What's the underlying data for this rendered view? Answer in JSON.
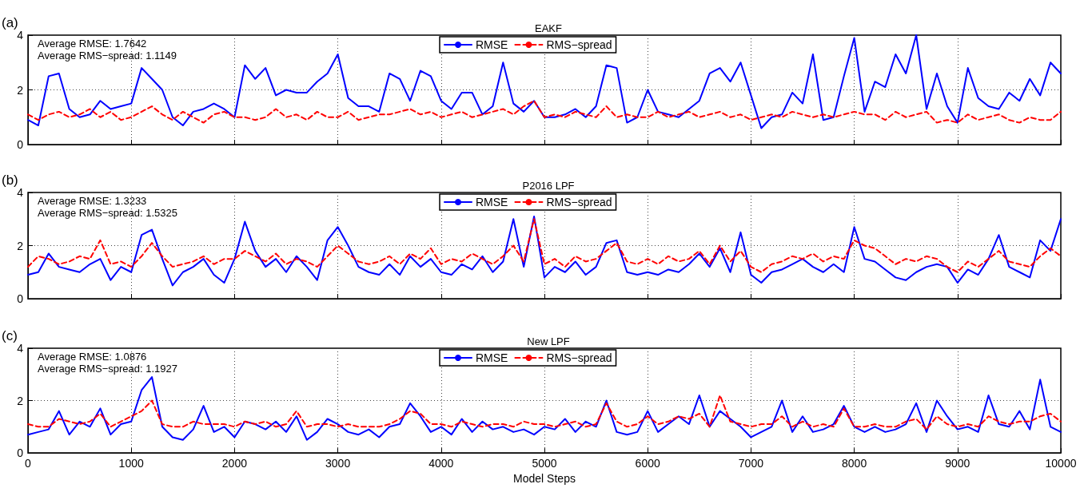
{
  "chart_data": [
    {
      "type": "line",
      "title": "EAKF",
      "annotations": [
        "(a)",
        "Average RMSE: 1.7642",
        "Average RMS−spread: 1.1149"
      ],
      "legend": "top",
      "grid": true,
      "tick_labels": "y",
      "marker": "none",
      "xlim": [
        0,
        10000
      ],
      "xticks": [
        0,
        1000,
        2000,
        3000,
        4000,
        5000,
        6000,
        7000,
        8000,
        9000,
        10000
      ],
      "ylim": [
        0,
        4
      ],
      "yticks": [
        0,
        2,
        4
      ],
      "x": [
        0,
        100,
        200,
        300,
        400,
        500,
        600,
        700,
        800,
        900,
        1000,
        1100,
        1200,
        1300,
        1400,
        1500,
        1600,
        1700,
        1800,
        1900,
        2000,
        2100,
        2200,
        2300,
        2400,
        2500,
        2600,
        2700,
        2800,
        2900,
        3000,
        3100,
        3200,
        3300,
        3400,
        3500,
        3600,
        3700,
        3800,
        3900,
        4000,
        4100,
        4200,
        4300,
        4400,
        4500,
        4600,
        4700,
        4800,
        4900,
        5000,
        5100,
        5200,
        5300,
        5400,
        5500,
        5600,
        5700,
        5800,
        5900,
        6000,
        6100,
        6200,
        6300,
        6400,
        6500,
        6600,
        6700,
        6800,
        6900,
        7000,
        7100,
        7200,
        7300,
        7400,
        7500,
        7600,
        7700,
        7800,
        7900,
        8000,
        8100,
        8200,
        8300,
        8400,
        8500,
        8600,
        8700,
        8800,
        8900,
        9000,
        9100,
        9200,
        9300,
        9400,
        9500,
        9600,
        9700,
        9800,
        9900,
        10000
      ],
      "series": [
        {
          "name": "RMSE",
          "color": "#0000ff",
          "line_style": "solid",
          "values": [
            0.9,
            0.7,
            2.5,
            2.6,
            1.3,
            1.0,
            1.1,
            1.6,
            1.3,
            1.4,
            1.5,
            2.8,
            2.4,
            2.0,
            1.0,
            0.7,
            1.2,
            1.3,
            1.5,
            1.3,
            1.0,
            2.9,
            2.4,
            2.8,
            1.8,
            2.0,
            1.9,
            1.9,
            2.3,
            2.6,
            3.3,
            1.7,
            1.4,
            1.4,
            1.2,
            2.6,
            2.4,
            1.6,
            2.7,
            2.5,
            1.6,
            1.3,
            1.9,
            1.9,
            1.1,
            1.4,
            3.0,
            1.5,
            1.2,
            1.6,
            1.0,
            1.0,
            1.1,
            1.3,
            1.0,
            1.4,
            2.9,
            2.8,
            0.8,
            1.0,
            2.0,
            1.2,
            1.1,
            1.0,
            1.3,
            1.6,
            2.6,
            2.8,
            2.3,
            3.0,
            1.8,
            0.6,
            1.0,
            1.1,
            1.9,
            1.5,
            3.3,
            0.9,
            1.0,
            2.5,
            3.9,
            1.2,
            2.3,
            2.1,
            3.3,
            2.6,
            4.0,
            1.3,
            2.6,
            1.4,
            0.8,
            2.8,
            1.7,
            1.4,
            1.3,
            1.9,
            1.6,
            2.4,
            1.8,
            3.0,
            2.6
          ]
        },
        {
          "name": "RMS−spread",
          "color": "#ff0000",
          "line_style": "dashed",
          "values": [
            1.1,
            0.9,
            1.1,
            1.2,
            1.0,
            1.1,
            1.3,
            1.0,
            1.2,
            0.9,
            1.0,
            1.2,
            1.4,
            1.1,
            0.9,
            1.2,
            1.0,
            0.8,
            1.1,
            1.2,
            1.0,
            1.0,
            0.9,
            1.0,
            1.3,
            1.0,
            1.1,
            0.9,
            1.2,
            1.0,
            1.0,
            1.2,
            0.9,
            1.0,
            1.1,
            1.1,
            1.2,
            1.3,
            1.1,
            1.2,
            1.0,
            1.1,
            1.2,
            1.0,
            1.1,
            1.2,
            1.3,
            1.1,
            1.4,
            1.6,
            1.0,
            1.1,
            1.0,
            1.2,
            1.1,
            1.0,
            1.4,
            1.0,
            1.1,
            1.0,
            1.0,
            1.2,
            1.0,
            1.1,
            1.2,
            1.0,
            1.1,
            1.2,
            1.0,
            1.1,
            0.9,
            1.0,
            1.1,
            1.0,
            1.2,
            1.1,
            1.0,
            1.1,
            1.0,
            1.1,
            1.2,
            1.1,
            1.1,
            0.9,
            1.2,
            1.0,
            1.1,
            1.2,
            0.8,
            0.9,
            0.8,
            1.1,
            0.9,
            1.0,
            1.1,
            0.9,
            0.8,
            1.0,
            0.9,
            0.9,
            1.2
          ]
        }
      ]
    },
    {
      "type": "line",
      "title": "P2016 LPF",
      "annotations": [
        "(b)",
        "Average RMSE: 1.3233",
        "Average RMS−spread: 1.5325"
      ],
      "legend": "top",
      "grid": true,
      "tick_labels": "y",
      "marker": "none",
      "xlim": [
        0,
        10000
      ],
      "xticks": [
        0,
        1000,
        2000,
        3000,
        4000,
        5000,
        6000,
        7000,
        8000,
        9000,
        10000
      ],
      "ylim": [
        0,
        4
      ],
      "yticks": [
        0,
        2,
        4
      ],
      "x": [
        0,
        100,
        200,
        300,
        400,
        500,
        600,
        700,
        800,
        900,
        1000,
        1100,
        1200,
        1300,
        1400,
        1500,
        1600,
        1700,
        1800,
        1900,
        2000,
        2100,
        2200,
        2300,
        2400,
        2500,
        2600,
        2700,
        2800,
        2900,
        3000,
        3100,
        3200,
        3300,
        3400,
        3500,
        3600,
        3700,
        3800,
        3900,
        4000,
        4100,
        4200,
        4300,
        4400,
        4500,
        4600,
        4700,
        4800,
        4900,
        5000,
        5100,
        5200,
        5300,
        5400,
        5500,
        5600,
        5700,
        5800,
        5900,
        6000,
        6100,
        6200,
        6300,
        6400,
        6500,
        6600,
        6700,
        6800,
        6900,
        7000,
        7100,
        7200,
        7300,
        7400,
        7500,
        7600,
        7700,
        7800,
        7900,
        8000,
        8100,
        8200,
        8300,
        8400,
        8500,
        8600,
        8700,
        8800,
        8900,
        9000,
        9100,
        9200,
        9300,
        9400,
        9500,
        9600,
        9700,
        9800,
        9900,
        10000
      ],
      "series": [
        {
          "name": "RMSE",
          "color": "#0000ff",
          "line_style": "solid",
          "values": [
            0.9,
            1.0,
            1.7,
            1.2,
            1.1,
            1.0,
            1.3,
            1.5,
            0.7,
            1.2,
            1.0,
            2.4,
            2.6,
            1.5,
            0.5,
            1.0,
            1.2,
            1.5,
            0.9,
            0.6,
            1.5,
            2.9,
            1.8,
            1.2,
            1.5,
            1.0,
            1.6,
            1.2,
            0.7,
            2.2,
            2.7,
            2.0,
            1.2,
            1.0,
            0.9,
            1.3,
            0.9,
            1.6,
            1.2,
            1.5,
            1.0,
            0.9,
            1.3,
            1.1,
            1.6,
            1.0,
            1.4,
            3.0,
            1.2,
            3.1,
            0.8,
            1.2,
            1.0,
            1.4,
            0.9,
            1.2,
            2.1,
            2.2,
            1.0,
            0.9,
            1.0,
            0.9,
            1.1,
            1.0,
            1.3,
            1.7,
            1.2,
            1.9,
            1.0,
            2.5,
            0.9,
            0.6,
            1.0,
            1.1,
            1.3,
            1.5,
            1.2,
            1.0,
            1.3,
            1.0,
            2.7,
            1.5,
            1.4,
            1.1,
            0.8,
            0.7,
            1.0,
            1.2,
            1.3,
            1.2,
            0.6,
            1.1,
            0.9,
            1.5,
            2.4,
            1.2,
            1.0,
            0.8,
            2.2,
            1.8,
            3.0
          ]
        },
        {
          "name": "RMS−spread",
          "color": "#ff0000",
          "line_style": "dashed",
          "values": [
            1.2,
            1.6,
            1.5,
            1.3,
            1.4,
            1.6,
            1.5,
            2.2,
            1.3,
            1.4,
            1.2,
            1.6,
            2.1,
            1.6,
            1.2,
            1.3,
            1.4,
            1.6,
            1.3,
            1.5,
            1.5,
            1.8,
            1.6,
            1.4,
            1.7,
            1.3,
            1.5,
            1.4,
            1.2,
            1.6,
            2.0,
            1.7,
            1.4,
            1.3,
            1.4,
            1.6,
            1.3,
            1.7,
            1.5,
            1.9,
            1.3,
            1.5,
            1.4,
            1.7,
            1.5,
            1.3,
            1.6,
            2.0,
            1.4,
            3.0,
            1.3,
            1.5,
            1.2,
            1.6,
            1.4,
            1.5,
            1.8,
            2.1,
            1.4,
            1.3,
            1.5,
            1.3,
            1.6,
            1.4,
            1.5,
            1.8,
            1.3,
            2.0,
            1.4,
            1.8,
            1.2,
            1.0,
            1.3,
            1.4,
            1.6,
            1.5,
            1.7,
            1.4,
            1.6,
            1.5,
            2.2,
            2.0,
            1.9,
            1.6,
            1.3,
            1.5,
            1.4,
            1.6,
            1.5,
            1.2,
            1.0,
            1.4,
            1.2,
            1.5,
            1.8,
            1.4,
            1.3,
            1.2,
            1.6,
            1.9,
            1.6
          ]
        }
      ]
    },
    {
      "type": "line",
      "title": "New LPF",
      "xlabel": "Model Steps",
      "annotations": [
        "(c)",
        "Average RMSE: 1.0876",
        "Average RMS−spread: 1.1927"
      ],
      "legend": "top",
      "grid": true,
      "marker": "none",
      "xlim": [
        0,
        10000
      ],
      "xticks": [
        0,
        1000,
        2000,
        3000,
        4000,
        5000,
        6000,
        7000,
        8000,
        9000,
        10000
      ],
      "ylim": [
        0,
        4
      ],
      "yticks": [
        0,
        2,
        4
      ],
      "x": [
        0,
        100,
        200,
        300,
        400,
        500,
        600,
        700,
        800,
        900,
        1000,
        1100,
        1200,
        1300,
        1400,
        1500,
        1600,
        1700,
        1800,
        1900,
        2000,
        2100,
        2200,
        2300,
        2400,
        2500,
        2600,
        2700,
        2800,
        2900,
        3000,
        3100,
        3200,
        3300,
        3400,
        3500,
        3600,
        3700,
        3800,
        3900,
        4000,
        4100,
        4200,
        4300,
        4400,
        4500,
        4600,
        4700,
        4800,
        4900,
        5000,
        5100,
        5200,
        5300,
        5400,
        5500,
        5600,
        5700,
        5800,
        5900,
        6000,
        6100,
        6200,
        6300,
        6400,
        6500,
        6600,
        6700,
        6800,
        6900,
        7000,
        7100,
        7200,
        7300,
        7400,
        7500,
        7600,
        7700,
        7800,
        7900,
        8000,
        8100,
        8200,
        8300,
        8400,
        8500,
        8600,
        8700,
        8800,
        8900,
        9000,
        9100,
        9200,
        9300,
        9400,
        9500,
        9600,
        9700,
        9800,
        9900,
        10000
      ],
      "series": [
        {
          "name": "RMSE",
          "color": "#0000ff",
          "line_style": "solid",
          "values": [
            0.7,
            0.8,
            0.9,
            1.6,
            0.7,
            1.2,
            1.0,
            1.7,
            0.7,
            1.1,
            1.2,
            2.4,
            2.9,
            1.0,
            0.6,
            0.5,
            0.9,
            1.8,
            0.8,
            1.0,
            0.6,
            1.2,
            1.1,
            0.9,
            1.2,
            0.8,
            1.4,
            0.5,
            0.8,
            1.3,
            1.1,
            0.8,
            0.7,
            0.9,
            0.6,
            1.0,
            1.1,
            1.9,
            1.4,
            0.8,
            1.0,
            0.7,
            1.3,
            0.8,
            1.2,
            0.9,
            1.0,
            0.8,
            0.9,
            0.7,
            1.0,
            0.9,
            1.3,
            0.8,
            1.2,
            1.0,
            2.0,
            0.8,
            0.7,
            0.8,
            1.6,
            0.8,
            1.1,
            1.4,
            1.1,
            2.2,
            1.0,
            1.6,
            1.3,
            1.0,
            0.6,
            0.8,
            1.0,
            2.0,
            0.8,
            1.4,
            0.8,
            0.9,
            1.1,
            1.8,
            1.0,
            0.8,
            1.0,
            0.8,
            0.9,
            1.1,
            1.9,
            0.8,
            2.0,
            1.4,
            0.9,
            1.0,
            0.8,
            2.2,
            1.1,
            1.0,
            1.6,
            0.9,
            2.8,
            1.0,
            0.8
          ]
        },
        {
          "name": "RMS−spread",
          "color": "#ff0000",
          "line_style": "dashed",
          "values": [
            1.1,
            1.0,
            1.0,
            1.3,
            1.2,
            1.1,
            1.2,
            1.5,
            1.0,
            1.2,
            1.4,
            1.6,
            2.0,
            1.1,
            1.0,
            1.0,
            1.2,
            1.1,
            1.1,
            1.1,
            1.0,
            1.2,
            1.1,
            1.2,
            1.0,
            1.1,
            1.6,
            1.0,
            1.1,
            1.1,
            1.0,
            1.1,
            1.0,
            1.0,
            1.0,
            1.1,
            1.3,
            1.6,
            1.5,
            1.1,
            1.1,
            1.0,
            1.2,
            1.1,
            1.0,
            1.1,
            1.1,
            1.0,
            1.2,
            1.1,
            1.1,
            1.0,
            1.1,
            1.2,
            1.0,
            1.1,
            1.9,
            1.2,
            1.0,
            1.1,
            1.4,
            1.1,
            1.2,
            1.4,
            1.3,
            1.5,
            1.0,
            2.2,
            1.2,
            1.1,
            1.0,
            1.1,
            1.1,
            1.4,
            1.0,
            1.2,
            1.0,
            1.1,
            1.0,
            1.7,
            1.0,
            1.0,
            1.1,
            1.0,
            1.0,
            1.2,
            1.3,
            0.9,
            1.4,
            1.1,
            1.0,
            1.1,
            1.0,
            1.4,
            1.2,
            1.1,
            1.2,
            1.2,
            1.4,
            1.5,
            1.2
          ]
        }
      ]
    }
  ]
}
